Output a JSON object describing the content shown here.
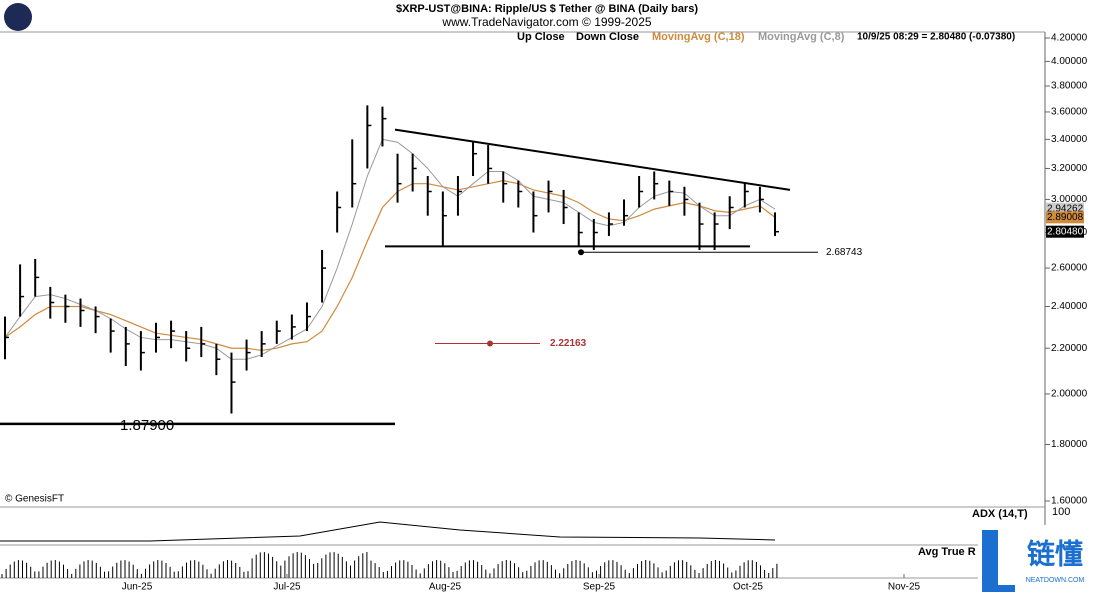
{
  "header": {
    "title": "$XRP-UST@BINA:  Ripple/US $ Tether @ BINA  (Daily bars)",
    "subtitle": "www.TradeNavigator.com © 1999-2025"
  },
  "chart_data": {
    "type": "ohlc",
    "log_scale": true,
    "legend": [
      {
        "name": "Up Close",
        "color": "#000000"
      },
      {
        "name": "Down Close",
        "color": "#000000"
      },
      {
        "name": "MovingAvg (C,18)",
        "color": "#d08a3c"
      },
      {
        "name": "MovingAvg (C,8)",
        "color": "#9a9a9a"
      }
    ],
    "status": "10/9/25 08:29 = 2.80480 (-0.07380)",
    "copyright": "© GenesisFT",
    "ylim": [
      1.6,
      4.2
    ],
    "yticks": [
      {
        "value": 4.2,
        "label": "4.20000"
      },
      {
        "value": 4.0,
        "label": "4.00000"
      },
      {
        "value": 3.8,
        "label": "3.80000"
      },
      {
        "value": 3.6,
        "label": "3.60000"
      },
      {
        "value": 3.4,
        "label": "3.40000"
      },
      {
        "value": 3.2,
        "label": "3.20000"
      },
      {
        "value": 3.0,
        "label": "3.00000"
      },
      {
        "value": 2.8,
        "label": "2.80000"
      },
      {
        "value": 2.6,
        "label": "2.60000"
      },
      {
        "value": 2.4,
        "label": "2.40000"
      },
      {
        "value": 2.2,
        "label": "2.20000"
      },
      {
        "value": 2.0,
        "label": "2.00000"
      },
      {
        "value": 1.8,
        "label": "1.80000"
      },
      {
        "value": 1.6,
        "label": "1.60000"
      }
    ],
    "x_labels": [
      "Jun-25",
      "Jul-25",
      "Aug-25",
      "Sep-25",
      "Oct-25",
      "Nov-25"
    ],
    "high": [
      2.35,
      2.62,
      2.65,
      2.5,
      2.46,
      2.44,
      2.4,
      2.34,
      2.3,
      2.28,
      2.32,
      2.33,
      2.28,
      2.3,
      2.22,
      2.18,
      2.24,
      2.28,
      2.33,
      2.36,
      2.42,
      2.7,
      3.05,
      3.4,
      3.65,
      3.64,
      3.3,
      3.3,
      3.15,
      3.05,
      3.15,
      3.38,
      3.36,
      3.18,
      3.12,
      3.05,
      3.12,
      3.06,
      2.92,
      2.88,
      2.92,
      3.0,
      3.15,
      3.18,
      3.12,
      3.08,
      2.98,
      2.92,
      3.02,
      3.1,
      3.08,
      2.92
    ],
    "low": [
      2.15,
      2.35,
      2.45,
      2.34,
      2.32,
      2.3,
      2.27,
      2.18,
      2.12,
      2.1,
      2.18,
      2.2,
      2.14,
      2.16,
      2.08,
      1.92,
      2.1,
      2.16,
      2.22,
      2.24,
      2.28,
      2.42,
      2.8,
      2.95,
      3.2,
      3.35,
      2.98,
      3.05,
      2.9,
      2.72,
      2.9,
      3.15,
      3.1,
      2.98,
      2.95,
      2.8,
      2.92,
      2.85,
      2.72,
      2.7,
      2.78,
      2.84,
      2.95,
      3.0,
      2.96,
      2.9,
      2.7,
      2.7,
      2.82,
      2.95,
      2.92,
      2.78
    ],
    "close": [
      2.25,
      2.45,
      2.55,
      2.42,
      2.4,
      2.38,
      2.35,
      2.28,
      2.22,
      2.18,
      2.25,
      2.28,
      2.2,
      2.22,
      2.15,
      2.05,
      2.18,
      2.22,
      2.28,
      2.3,
      2.35,
      2.6,
      2.95,
      3.1,
      3.5,
      3.55,
      3.1,
      3.2,
      3.05,
      2.9,
      3.05,
      3.3,
      3.2,
      3.1,
      3.05,
      2.9,
      3.05,
      2.95,
      2.8,
      2.8,
      2.85,
      2.9,
      3.05,
      3.1,
      3.05,
      3.0,
      2.85,
      2.85,
      2.95,
      3.05,
      3.0,
      2.8048
    ],
    "ma18": [
      2.25,
      2.3,
      2.36,
      2.4,
      2.4,
      2.4,
      2.38,
      2.36,
      2.33,
      2.3,
      2.27,
      2.26,
      2.25,
      2.24,
      2.22,
      2.2,
      2.2,
      2.19,
      2.2,
      2.22,
      2.23,
      2.28,
      2.4,
      2.55,
      2.75,
      2.95,
      3.05,
      3.1,
      3.1,
      3.08,
      3.06,
      3.08,
      3.1,
      3.12,
      3.1,
      3.06,
      3.04,
      3.02,
      2.98,
      2.92,
      2.88,
      2.87,
      2.9,
      2.94,
      2.96,
      2.98,
      2.96,
      2.93,
      2.92,
      2.94,
      2.96,
      2.89
    ],
    "ma8": [
      2.25,
      2.35,
      2.45,
      2.46,
      2.44,
      2.41,
      2.38,
      2.34,
      2.29,
      2.25,
      2.24,
      2.24,
      2.23,
      2.22,
      2.2,
      2.15,
      2.15,
      2.17,
      2.21,
      2.25,
      2.29,
      2.4,
      2.6,
      2.85,
      3.15,
      3.4,
      3.38,
      3.3,
      3.2,
      3.08,
      3.02,
      3.1,
      3.18,
      3.18,
      3.12,
      3.02,
      3.0,
      2.98,
      2.92,
      2.86,
      2.84,
      2.86,
      2.95,
      3.02,
      3.05,
      3.04,
      2.96,
      2.9,
      2.9,
      2.96,
      3.0,
      2.94
    ],
    "last_values": [
      {
        "value": 2.94262,
        "label": "2.94262",
        "color": "#cccccc"
      },
      {
        "value": 2.89008,
        "label": "2.89008",
        "color": "#d08a3c"
      },
      {
        "value": 2.8048,
        "label": "2.80480",
        "color": "#000000"
      }
    ],
    "levels": [
      {
        "value": 1.879,
        "label": "1.87900"
      },
      {
        "value": 2.68743,
        "label": "2.68743"
      },
      {
        "value": 2.22163,
        "label": "2.22163"
      }
    ],
    "trendline": [
      3.47,
      3.06
    ],
    "support": 2.72,
    "panels": [
      {
        "name": "ADX (14,T)",
        "top_label": "100"
      },
      {
        "name": "Avg True R"
      }
    ]
  },
  "logo": {
    "text": "链懂",
    "sub": "NEATDOWN.COM"
  }
}
